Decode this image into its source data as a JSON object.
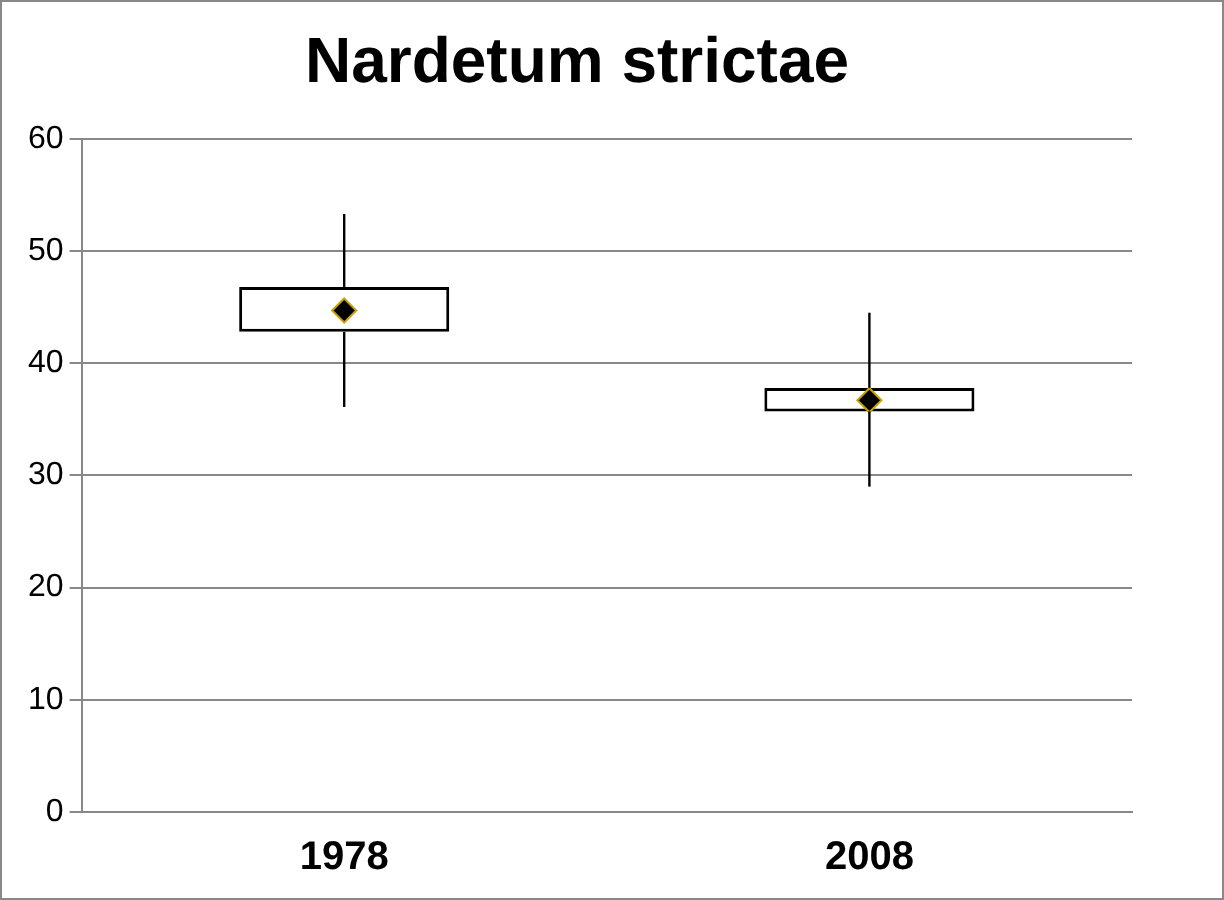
{
  "chart_data": {
    "type": "box",
    "title": "Nardetum strictae",
    "categories": [
      "1978",
      "2008"
    ],
    "boxes": [
      {
        "low": 36.1,
        "q1": 42.8,
        "median": 44.7,
        "q3": 46.8,
        "high": 53.3
      },
      {
        "low": 29.0,
        "q1": 35.7,
        "median": 36.7,
        "q3": 37.8,
        "high": 44.5
      }
    ],
    "color": "#000000",
    "ylim": [
      0,
      60
    ],
    "yticks": [
      0,
      10,
      20,
      30,
      40,
      50,
      60
    ],
    "grid": "y",
    "marker": "diamond",
    "legend": false
  }
}
